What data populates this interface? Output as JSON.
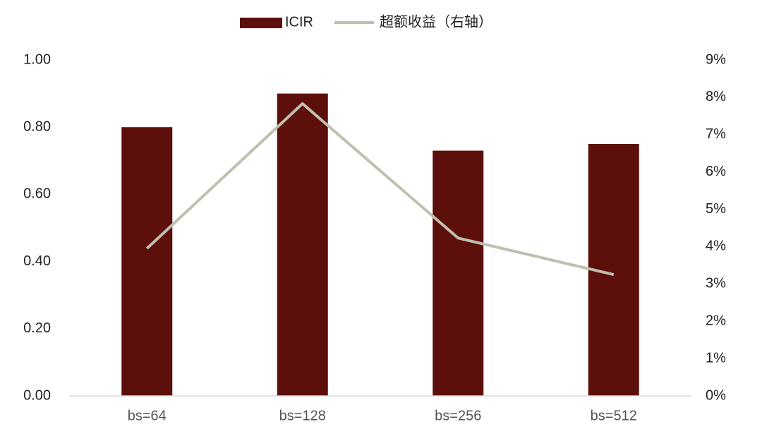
{
  "chart_data": {
    "type": "bar",
    "categories": [
      "bs=64",
      "bs=128",
      "bs=256",
      "bs=512"
    ],
    "series": [
      {
        "name": "ICIR",
        "color": "#5c0f0b",
        "values": [
          0.8,
          0.9,
          0.73,
          0.75
        ]
      },
      {
        "name": "超额收益（右轴）",
        "color": "#c0bfb0",
        "type": "line",
        "axis": "y2",
        "values": [
          3.95,
          7.83,
          4.23,
          3.25
        ]
      }
    ],
    "ylim": [
      0,
      1
    ],
    "yticks": [
      {
        "value": 0,
        "label": "0.00"
      },
      {
        "value": 0.2,
        "label": "0.20"
      },
      {
        "value": 0.4,
        "label": "0.40"
      },
      {
        "value": 0.6,
        "label": "0.60"
      },
      {
        "value": 0.8,
        "label": "0.80"
      },
      {
        "value": 1,
        "label": "1.00"
      }
    ],
    "y2lim": [
      0,
      9
    ],
    "y2ticks": [
      {
        "value": 0,
        "label": "0%"
      },
      {
        "value": 1,
        "label": "1%"
      },
      {
        "value": 2,
        "label": "2%"
      },
      {
        "value": 3,
        "label": "3%"
      },
      {
        "value": 4,
        "label": "4%"
      },
      {
        "value": 5,
        "label": "5%"
      },
      {
        "value": 6,
        "label": "6%"
      },
      {
        "value": 7,
        "label": "7%"
      },
      {
        "value": 8,
        "label": "8%"
      },
      {
        "value": 9,
        "label": "9%"
      }
    ],
    "grid": false,
    "legend": "top"
  }
}
